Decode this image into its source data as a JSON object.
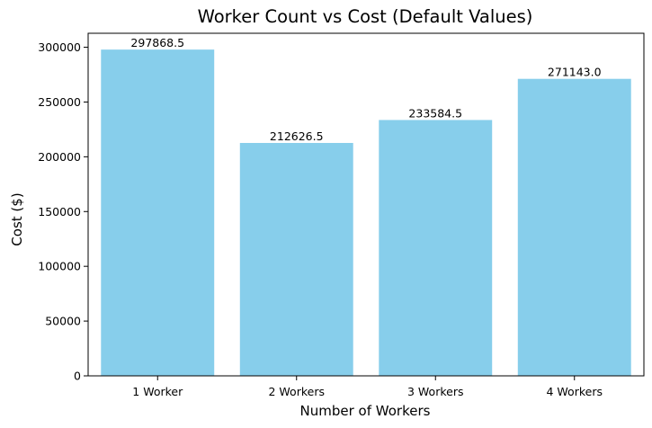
{
  "chart_data": {
    "type": "bar",
    "title": "Worker Count vs Cost (Default Values)",
    "xlabel": "Number of Workers",
    "ylabel": "Cost ($)",
    "categories": [
      "1 Worker",
      "2 Workers",
      "3 Workers",
      "4 Workers"
    ],
    "values": [
      297868.5,
      212626.5,
      233584.5,
      271143.0
    ],
    "value_labels": [
      "297868.5",
      "212626.5",
      "233584.5",
      "271143.0"
    ],
    "ylim": [
      0,
      312762
    ],
    "yticks": [
      0,
      50000,
      100000,
      150000,
      200000,
      250000,
      300000
    ],
    "ytick_labels": [
      "0",
      "50000",
      "100000",
      "150000",
      "200000",
      "250000",
      "300000"
    ],
    "bar_color": "#87ceeb",
    "grid": false,
    "legend": false
  }
}
